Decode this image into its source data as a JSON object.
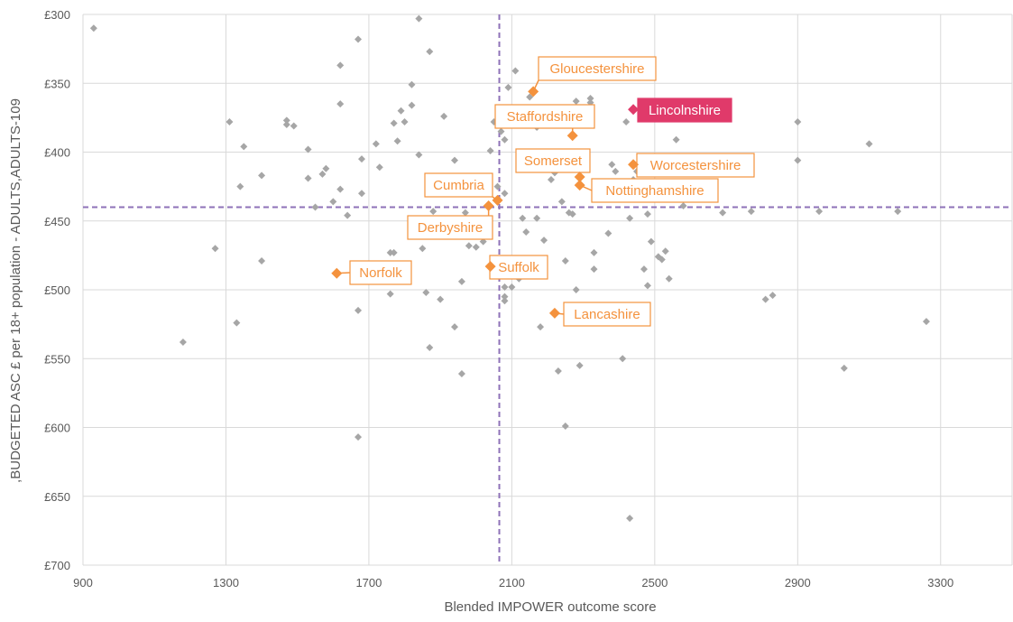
{
  "chart_data": {
    "type": "scatter",
    "title": "",
    "xlabel": "Blended IMPOWER outcome score",
    "ylabel": ",BUDGETED ASC £ per 18+ population - ADULTS,ADULTS-109",
    "xlim": [
      900,
      3500
    ],
    "ylim": [
      700,
      300
    ],
    "y_axis_reversed": true,
    "x_ticks": [
      900,
      1300,
      1700,
      2100,
      2500,
      2900,
      3300
    ],
    "x_tick_labels": [
      "900",
      "1300",
      "1700",
      "2100",
      "2500",
      "2900",
      "3300"
    ],
    "y_ticks": [
      300,
      350,
      400,
      450,
      500,
      550,
      600,
      650,
      700
    ],
    "y_tick_labels": [
      "£300",
      "£350",
      "£400",
      "£450",
      "£500",
      "£550",
      "£600",
      "£650",
      "£700"
    ],
    "grid": true,
    "reference_lines": {
      "x": 2065,
      "y": 440
    },
    "colors": {
      "grey_point": "#a6a6a6",
      "highlight": "#f4923d",
      "lincolnshire": "#e03a6a",
      "reference_line": "#8e72b8",
      "grid": "#d9d9d9"
    },
    "points": [
      [
        930,
        310
      ],
      [
        1180,
        538
      ],
      [
        1270,
        470
      ],
      [
        1310,
        378
      ],
      [
        1330,
        524
      ],
      [
        1340,
        425
      ],
      [
        1350,
        396
      ],
      [
        1400,
        417
      ],
      [
        1400,
        479
      ],
      [
        1470,
        380
      ],
      [
        1470,
        377
      ],
      [
        1490,
        381
      ],
      [
        1530,
        419
      ],
      [
        1530,
        398
      ],
      [
        1550,
        440
      ],
      [
        1570,
        416
      ],
      [
        1580,
        412
      ],
      [
        1600,
        436
      ],
      [
        1620,
        337
      ],
      [
        1620,
        427
      ],
      [
        1620,
        365
      ],
      [
        1640,
        446
      ],
      [
        1670,
        318
      ],
      [
        1670,
        515
      ],
      [
        1670,
        607
      ],
      [
        1680,
        405
      ],
      [
        1680,
        430
      ],
      [
        1720,
        394
      ],
      [
        1730,
        411
      ],
      [
        1760,
        473
      ],
      [
        1760,
        503
      ],
      [
        1770,
        473
      ],
      [
        1770,
        379
      ],
      [
        1780,
        392
      ],
      [
        1790,
        370
      ],
      [
        1800,
        378
      ],
      [
        1820,
        366
      ],
      [
        1820,
        351
      ],
      [
        1830,
        461
      ],
      [
        1840,
        303
      ],
      [
        1840,
        402
      ],
      [
        1850,
        470
      ],
      [
        1860,
        502
      ],
      [
        1870,
        327
      ],
      [
        1870,
        542
      ],
      [
        1880,
        443
      ],
      [
        1900,
        507
      ],
      [
        1910,
        374
      ],
      [
        1940,
        406
      ],
      [
        1940,
        527
      ],
      [
        1960,
        561
      ],
      [
        1960,
        494
      ],
      [
        1970,
        444
      ],
      [
        1980,
        457
      ],
      [
        1980,
        468
      ],
      [
        2000,
        469
      ],
      [
        2020,
        465
      ],
      [
        2040,
        399
      ],
      [
        2050,
        378
      ],
      [
        2060,
        425
      ],
      [
        2070,
        385
      ],
      [
        2080,
        391
      ],
      [
        2080,
        498
      ],
      [
        2080,
        508
      ],
      [
        2080,
        505
      ],
      [
        2080,
        430
      ],
      [
        2090,
        353
      ],
      [
        2100,
        498
      ],
      [
        2110,
        341
      ],
      [
        2120,
        492
      ],
      [
        2130,
        448
      ],
      [
        2140,
        458
      ],
      [
        2150,
        360
      ],
      [
        2170,
        382
      ],
      [
        2170,
        448
      ],
      [
        2180,
        527
      ],
      [
        2190,
        464
      ],
      [
        2210,
        420
      ],
      [
        2220,
        415
      ],
      [
        2230,
        559
      ],
      [
        2240,
        436
      ],
      [
        2250,
        479
      ],
      [
        2250,
        599
      ],
      [
        2260,
        444
      ],
      [
        2270,
        445
      ],
      [
        2280,
        500
      ],
      [
        2280,
        363
      ],
      [
        2290,
        555
      ],
      [
        2300,
        409
      ],
      [
        2320,
        364
      ],
      [
        2320,
        361
      ],
      [
        2330,
        473
      ],
      [
        2330,
        485
      ],
      [
        2370,
        459
      ],
      [
        2380,
        409
      ],
      [
        2390,
        414
      ],
      [
        2410,
        550
      ],
      [
        2420,
        378
      ],
      [
        2430,
        448
      ],
      [
        2430,
        666
      ],
      [
        2440,
        420
      ],
      [
        2450,
        414
      ],
      [
        2470,
        485
      ],
      [
        2480,
        445
      ],
      [
        2480,
        497
      ],
      [
        2490,
        465
      ],
      [
        2500,
        434
      ],
      [
        2510,
        476
      ],
      [
        2520,
        478
      ],
      [
        2530,
        472
      ],
      [
        2540,
        492
      ],
      [
        2560,
        391
      ],
      [
        2580,
        439
      ],
      [
        2690,
        444
      ],
      [
        2770,
        443
      ],
      [
        2810,
        507
      ],
      [
        2830,
        504
      ],
      [
        2900,
        378
      ],
      [
        2900,
        406
      ],
      [
        2960,
        443
      ],
      [
        3030,
        557
      ],
      [
        3100,
        394
      ],
      [
        3180,
        443
      ],
      [
        3260,
        523
      ]
    ],
    "highlighted": [
      {
        "name": "Gloucestershire",
        "x": 2160,
        "y": 356
      },
      {
        "name": "Lincolnshire",
        "x": 2440,
        "y": 369
      },
      {
        "name": "Staffordshire",
        "x": 2270,
        "y": 388
      },
      {
        "name": "Worcestershire",
        "x": 2440,
        "y": 409
      },
      {
        "name": "Somerset",
        "x": 2290,
        "y": 418
      },
      {
        "name": "Nottinghamshire",
        "x": 2290,
        "y": 424
      },
      {
        "name": "Cumbria",
        "x": 2060,
        "y": 435
      },
      {
        "name": "Derbyshire",
        "x": 2035,
        "y": 439
      },
      {
        "name": "Norfolk",
        "x": 1610,
        "y": 488
      },
      {
        "name": "Suffolk",
        "x": 2040,
        "y": 483
      },
      {
        "name": "Lancashire",
        "x": 2220,
        "y": 517
      }
    ]
  }
}
